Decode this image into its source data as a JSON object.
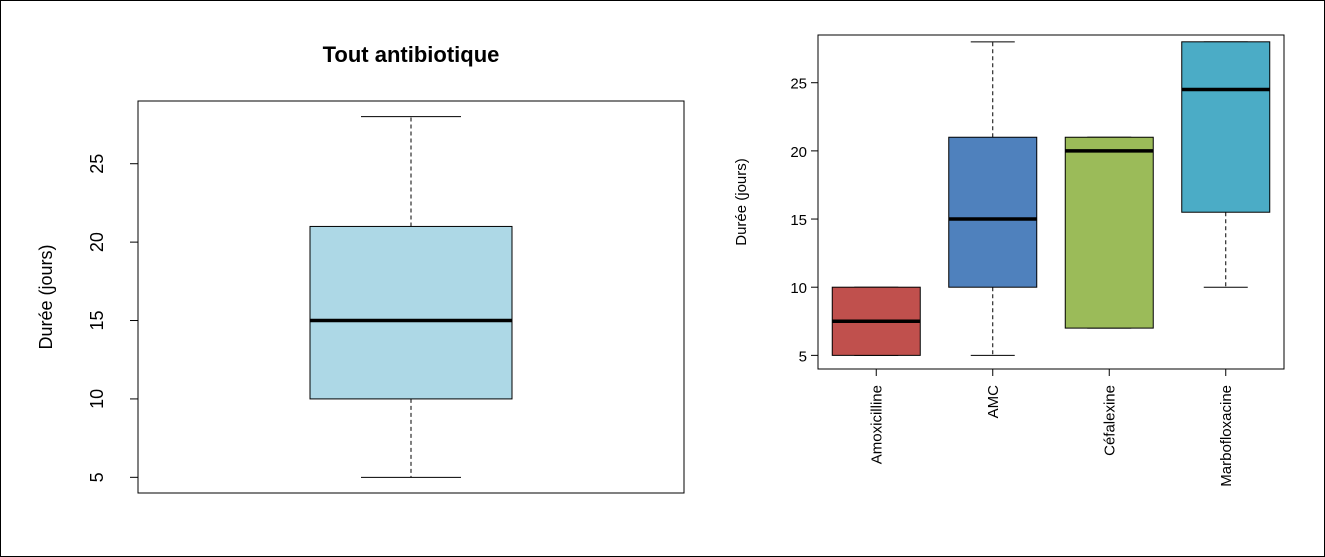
{
  "chart_data": [
    {
      "type": "boxplot",
      "title": "Tout antibiotique",
      "ylabel": "Durée (jours)",
      "xlabel": "",
      "ylim": [
        4,
        29
      ],
      "yticks": [
        "5",
        "10",
        "15",
        "20",
        "25"
      ],
      "grid": false,
      "boxes": [
        {
          "category": "",
          "min": 5,
          "q1": 10,
          "median": 15,
          "q3": 21,
          "max": 28,
          "color": "#add8e6"
        }
      ]
    },
    {
      "type": "boxplot",
      "title": "",
      "ylabel": "Durée (jours)",
      "xlabel": "",
      "ylim": [
        4,
        28.5
      ],
      "yticks": [
        "5",
        "10",
        "15",
        "20",
        "25"
      ],
      "grid": false,
      "categories": [
        "Amoxicilline",
        "AMC",
        "Céfalexine",
        "Marbofloxacine"
      ],
      "boxes": [
        {
          "category": "Amoxicilline",
          "min": 5,
          "q1": 5,
          "median": 7.5,
          "q3": 10,
          "max": 10,
          "color": "#c0504d"
        },
        {
          "category": "AMC",
          "min": 5,
          "q1": 10,
          "median": 15,
          "q3": 21,
          "max": 28,
          "color": "#4f81bd"
        },
        {
          "category": "Céfalexine",
          "min": 7,
          "q1": 7,
          "median": 20,
          "q3": 21,
          "max": 21,
          "color": "#9bbb59"
        },
        {
          "category": "Marbofloxacine",
          "min": 10,
          "q1": 15.5,
          "median": 24.5,
          "q3": 28,
          "max": 28,
          "color": "#4bacc6"
        }
      ]
    }
  ]
}
